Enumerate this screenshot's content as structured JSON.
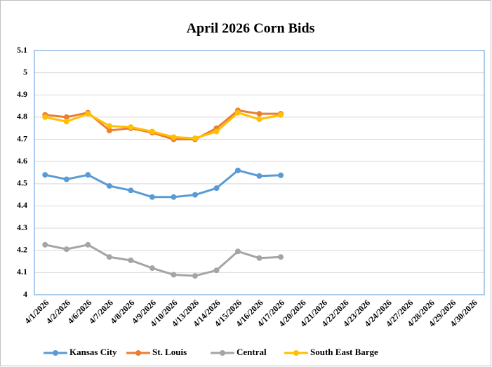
{
  "chart_data": {
    "type": "line",
    "title": "April 2026 Corn Bids",
    "categories": [
      "4/1/2026",
      "4/2/2026",
      "4/6/2026",
      "4/7/2026",
      "4/8/2026",
      "4/9/2026",
      "4/10/2026",
      "4/13/2026",
      "4/14/2026",
      "4/15/2026",
      "4/16/2026",
      "4/17/2026",
      "4/20/2026",
      "4/21/2026",
      "4/22/2026",
      "4/23/2026",
      "4/24/2026",
      "4/27/2026",
      "4/28/2026",
      "4/29/2026",
      "4/30/2026"
    ],
    "series": [
      {
        "name": "Kansas City",
        "color": "#5b9bd5",
        "values": [
          4.54,
          4.52,
          4.54,
          4.49,
          4.47,
          4.44,
          4.44,
          4.45,
          4.48,
          4.56,
          4.535,
          4.538,
          null,
          null,
          null,
          null,
          null,
          null,
          null,
          null,
          null
        ]
      },
      {
        "name": "St. Louis",
        "color": "#ed7d31",
        "values": [
          4.81,
          4.8,
          4.82,
          4.74,
          4.75,
          4.73,
          4.7,
          4.7,
          4.75,
          4.83,
          4.815,
          4.815,
          null,
          null,
          null,
          null,
          null,
          null,
          null,
          null,
          null
        ]
      },
      {
        "name": "Central",
        "color": "#a5a5a5",
        "values": [
          4.225,
          4.205,
          4.225,
          4.17,
          4.155,
          4.12,
          4.09,
          4.085,
          4.11,
          4.195,
          4.165,
          4.17,
          null,
          null,
          null,
          null,
          null,
          null,
          null,
          null,
          null
        ]
      },
      {
        "name": "South East Barge",
        "color": "#ffc000",
        "values": [
          4.8,
          4.78,
          4.815,
          4.76,
          4.755,
          4.735,
          4.71,
          4.705,
          4.735,
          4.82,
          4.79,
          4.81,
          null,
          null,
          null,
          null,
          null,
          null,
          null,
          null,
          null
        ]
      }
    ],
    "ylim": [
      4,
      5.1
    ],
    "yticks": [
      4,
      4.1,
      4.2,
      4.3,
      4.4,
      4.5,
      4.6,
      4.7,
      4.8,
      4.9,
      5,
      5.1
    ],
    "grid": true,
    "legend": "bottom"
  }
}
